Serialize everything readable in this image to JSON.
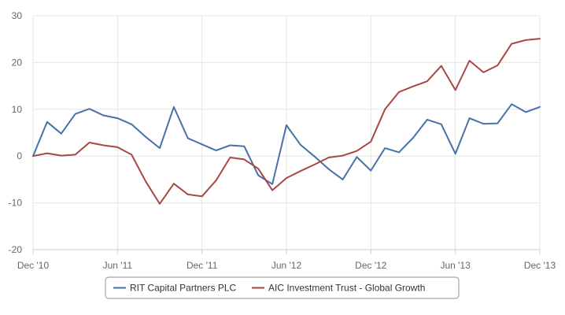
{
  "chart_data": {
    "type": "line",
    "title": "",
    "xlabel": "",
    "ylabel": "",
    "ylim": [
      -20,
      30
    ],
    "yticks": [
      -20,
      -10,
      0,
      10,
      20,
      30
    ],
    "x_tick_labels": [
      "Dec '10",
      "Jun '11",
      "Dec '11",
      "Jun '12",
      "Dec '12",
      "Jun '13",
      "Dec '13"
    ],
    "x_start": "Dec '10",
    "x_end": "Dec '13",
    "grid": true,
    "legend_position": "bottom",
    "series": [
      {
        "name": "RIT Capital Partners PLC",
        "color": "#4572A7",
        "values": [
          0,
          7.3,
          4.8,
          9.0,
          10.1,
          8.7,
          8.1,
          6.8,
          4.1,
          1.7,
          10.5,
          3.8,
          2.5,
          1.2,
          2.3,
          2.1,
          -4.1,
          -6.0,
          6.6,
          2.4,
          -0.1,
          -2.8,
          -5.0,
          -0.2,
          -3.1,
          1.7,
          0.8,
          3.9,
          7.8,
          6.8,
          0.5,
          8.1,
          6.9,
          7.0,
          11.1,
          9.4,
          10.5
        ]
      },
      {
        "name": "AIC Investment Trust - Global Growth",
        "color": "#AA4643",
        "values": [
          0,
          0.6,
          0.1,
          0.3,
          2.9,
          2.3,
          1.9,
          0.3,
          -5.4,
          -10.2,
          -5.9,
          -8.2,
          -8.6,
          -5.2,
          -0.3,
          -0.7,
          -2.7,
          -7.3,
          -4.7,
          -3.2,
          -1.8,
          -0.3,
          0.1,
          1.1,
          3.1,
          10.0,
          13.7,
          14.9,
          16.0,
          19.3,
          14.1,
          20.4,
          17.9,
          19.4,
          24.0,
          24.8,
          25.1
        ]
      }
    ]
  }
}
